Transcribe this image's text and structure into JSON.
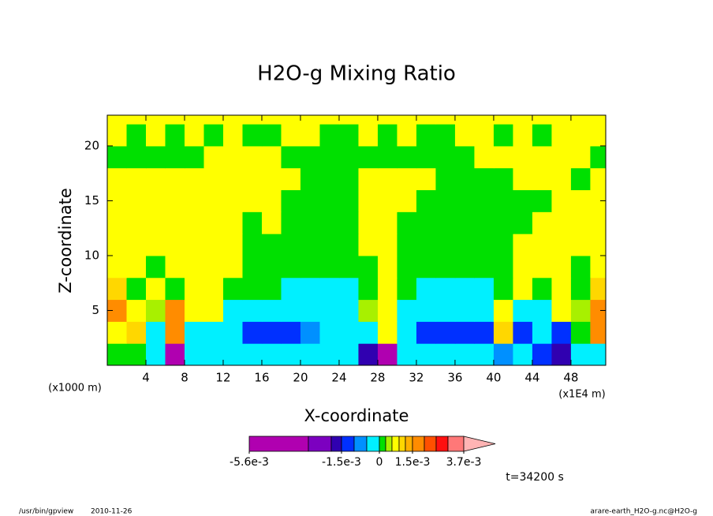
{
  "chart_data": {
    "type": "contour",
    "title": "H2O-g Mixing Ratio",
    "xlabel": "X-coordinate",
    "ylabel": "Z-coordinate",
    "x_unit": "(x1E4 m)",
    "y_unit": "(x1000 m)",
    "annotation": "t=34200 s",
    "footer_left": "/usr/bin/gpview",
    "footer_date": "2010-11-26",
    "footer_right": "arare-earth_H2O-g.nc@H2O-g",
    "xlim": [
      0,
      51.6
    ],
    "ylim": [
      0,
      22.8
    ],
    "xticks": [
      4,
      8,
      12,
      16,
      20,
      24,
      28,
      32,
      36,
      40,
      44,
      48
    ],
    "yticks": [
      5,
      10,
      15,
      20
    ],
    "x": [
      1,
      3,
      5,
      7,
      9,
      11,
      13,
      15,
      17,
      19,
      21,
      23,
      25,
      27,
      29,
      31,
      33,
      35,
      37,
      39,
      41,
      43,
      45,
      47,
      49,
      51
    ],
    "y": [
      1,
      3,
      5,
      7,
      9,
      11,
      13,
      15,
      17,
      19,
      21,
      23
    ],
    "z": [
      [
        0.0001,
        0.0001,
        -0.0003,
        -0.005,
        -0.0003,
        -0.0003,
        -0.0003,
        -0.0003,
        -0.0003,
        -0.0003,
        -0.0003,
        -0.0003,
        -0.0003,
        -0.002,
        -0.005,
        -0.0003,
        -0.0003,
        -0.0003,
        -0.0003,
        -0.0003,
        -0.0007,
        -0.0003,
        -0.0012,
        -0.002,
        -0.0003,
        -0.0003
      ],
      [
        0.0007,
        0.001,
        -0.0003,
        0.0016,
        -0.0003,
        -0.0003,
        -0.0003,
        -0.0012,
        -0.0012,
        -0.0012,
        -0.0007,
        -0.0003,
        -0.0003,
        -0.0003,
        0.0007,
        -0.0003,
        -0.0012,
        -0.0012,
        -0.0012,
        -0.0012,
        0.001,
        -0.0012,
        -0.0003,
        -0.0012,
        0.0001,
        0.0016
      ],
      [
        0.0016,
        0.0007,
        0.0004,
        0.0016,
        0.0007,
        0.0007,
        -0.0003,
        -0.0003,
        -0.0003,
        -0.0003,
        -0.0003,
        -0.0003,
        -0.0003,
        0.0004,
        0.0007,
        -0.0003,
        -0.0003,
        -0.0003,
        -0.0003,
        -0.0003,
        0.0007,
        -0.0003,
        -0.0003,
        0.0007,
        0.0004,
        0.0016
      ],
      [
        0.001,
        0.0001,
        0.0007,
        0.0001,
        0.0007,
        0.0007,
        0.0001,
        0.0001,
        0.0001,
        -0.0003,
        -0.0003,
        -0.0003,
        -0.0003,
        0.0001,
        0.0007,
        0.0001,
        -0.0003,
        -0.0003,
        -0.0003,
        -0.0003,
        0.0001,
        0.0007,
        0.0001,
        0.0007,
        0.0001,
        0.001
      ],
      [
        0.0007,
        0.0007,
        0.0001,
        0.0007,
        0.0007,
        0.0007,
        0.0007,
        0.0001,
        0.0001,
        0.0001,
        0.0001,
        0.0001,
        0.0001,
        0.0001,
        0.0007,
        0.0001,
        0.0001,
        0.0001,
        0.0001,
        0.0001,
        0.0001,
        0.0007,
        0.0007,
        0.0007,
        0.0001,
        0.0007
      ],
      [
        0.0007,
        0.0007,
        0.0007,
        0.0007,
        0.0007,
        0.0007,
        0.0007,
        0.0001,
        0.0001,
        0.0001,
        0.0001,
        0.0001,
        0.0001,
        0.0007,
        0.0007,
        0.0001,
        0.0001,
        0.0001,
        0.0001,
        0.0001,
        0.0001,
        0.0007,
        0.0007,
        0.0007,
        0.0007,
        0.0007
      ],
      [
        0.0007,
        0.0007,
        0.0007,
        0.0007,
        0.0007,
        0.0007,
        0.0007,
        0.0001,
        0.0007,
        0.0001,
        0.0001,
        0.0001,
        0.0001,
        0.0007,
        0.0007,
        0.0001,
        0.0001,
        0.0001,
        0.0001,
        0.0001,
        0.0001,
        0.0001,
        0.0007,
        0.0007,
        0.0007,
        0.0007
      ],
      [
        0.0007,
        0.0007,
        0.0007,
        0.0007,
        0.0007,
        0.0007,
        0.0007,
        0.0007,
        0.0007,
        0.0001,
        0.0001,
        0.0001,
        0.0001,
        0.0007,
        0.0007,
        0.0007,
        0.0001,
        0.0001,
        0.0001,
        0.0001,
        0.0001,
        0.0001,
        0.0001,
        0.0007,
        0.0007,
        0.0007
      ],
      [
        0.0007,
        0.0007,
        0.0007,
        0.0007,
        0.0007,
        0.0007,
        0.0007,
        0.0007,
        0.0007,
        0.0007,
        0.0001,
        0.0001,
        0.0001,
        0.0007,
        0.0007,
        0.0007,
        0.0007,
        0.0001,
        0.0001,
        0.0001,
        0.0001,
        0.0007,
        0.0007,
        0.0007,
        0.0001,
        0.0007
      ],
      [
        0.0001,
        0.0001,
        0.0001,
        0.0001,
        0.0001,
        0.0007,
        0.0007,
        0.0007,
        0.0007,
        0.0001,
        0.0001,
        0.0001,
        0.0001,
        0.0001,
        0.0001,
        0.0001,
        0.0001,
        0.0001,
        0.0001,
        0.0007,
        0.0007,
        0.0007,
        0.0007,
        0.0007,
        0.0007,
        0.0001
      ],
      [
        0.0007,
        0.0001,
        0.0007,
        0.0001,
        0.0007,
        0.0001,
        0.0007,
        0.0001,
        0.0001,
        0.0007,
        0.0007,
        0.0001,
        0.0001,
        0.0007,
        0.0001,
        0.0007,
        0.0001,
        0.0001,
        0.0007,
        0.0007,
        0.0001,
        0.0007,
        0.0001,
        0.0007,
        0.0007,
        0.0007
      ],
      [
        0.0007,
        0.0007,
        0.0007,
        0.0007,
        0.0007,
        0.0007,
        0.0007,
        0.0007,
        0.0007,
        0.0007,
        0.0007,
        0.0007,
        0.0007,
        0.0007,
        0.0007,
        0.0007,
        0.0007,
        0.0007,
        0.0007,
        0.0007,
        0.0007,
        0.0007,
        0.0007,
        0.0007,
        0.0007,
        0.0007
      ]
    ],
    "levels": [
      -0.0056,
      -0.0045,
      -0.003,
      -0.0015,
      -0.001,
      -0.0005,
      0,
      0.0003,
      0.0006,
      0.0009,
      0.0012,
      0.0015,
      0.002,
      0.0025,
      0.003,
      0.0037
    ],
    "colors": [
      "#b000b0",
      "#7c00c0",
      "#3000b0",
      "#0030ff",
      "#0090ff",
      "#00f0ff",
      "#00e000",
      "#a8f000",
      "#ffff00",
      "#ffd700",
      "#ffb000",
      "#ff8c00",
      "#ff5000",
      "#ff1010",
      "#ff7878"
    ],
    "extend_color": "#ffb4b4",
    "colorbar_ticks": [
      {
        "value": -0.0056,
        "label": "-5.6e-3"
      },
      {
        "value": -0.0015,
        "label": "-1.5e-3"
      },
      0,
      {
        "value": 0.0015,
        "label": "1.5e-3"
      },
      {
        "value": 0.0037,
        "label": "3.7e-3"
      }
    ]
  }
}
